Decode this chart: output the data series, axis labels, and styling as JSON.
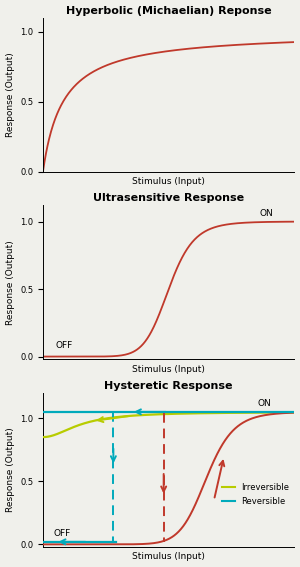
{
  "title1": "Hyperbolic (Michaelian) Reponse",
  "title2": "Ultrasensitive Response",
  "title3": "Hysteretic Response",
  "xlabel": "Stimulus (Input)",
  "ylabel": "Response (Output)",
  "curve_color": "#c0392b",
  "irreversible_color": "#b8cc00",
  "reversible_color": "#00aabb",
  "bg_color": "#f0f0eb",
  "title_fontsize": 8,
  "label_fontsize": 6.5,
  "tick_fontsize": 6,
  "annotation_fontsize": 6.5
}
